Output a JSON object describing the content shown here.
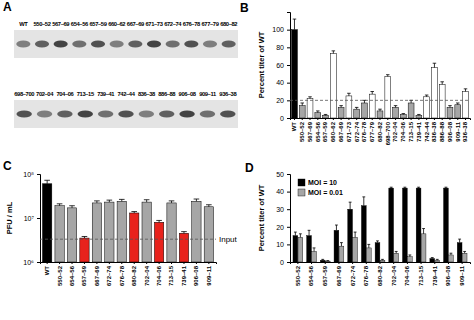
{
  "blot": {
    "label": "A",
    "rows": [
      [
        "WT",
        "550–52",
        "567–69",
        "654–56",
        "657–59",
        "660–62",
        "667–69",
        "671–73",
        "672–74",
        "676–78",
        "677–79",
        "680–82"
      ],
      [
        "698–700",
        "702–04",
        "704–06",
        "713–15",
        "739–41",
        "742–44",
        "836–38",
        "886–88",
        "906–08",
        "909–11",
        "936–38"
      ]
    ]
  },
  "chart_data": [
    {
      "type": "bar",
      "title": "B",
      "y_label": "Percent titer of WT",
      "categories": [
        "WT",
        "550–52",
        "567–69",
        "654–56",
        "657–59",
        "660–62",
        "667–69",
        "671–73",
        "672–74",
        "676–78",
        "677–79",
        "680–82",
        "698–700",
        "702–04",
        "704–06",
        "713–15",
        "739–41",
        "742–44",
        "836–38",
        "886–88",
        "906–08",
        "909–11",
        "936–38"
      ],
      "values": [
        100,
        14,
        22,
        6,
        3,
        73,
        12,
        25,
        10,
        17,
        27,
        8,
        47,
        12,
        4,
        17,
        3,
        24,
        57,
        38,
        12,
        15,
        30
      ],
      "errors": [
        12,
        3,
        2,
        2,
        1,
        3,
        2,
        3,
        2,
        3,
        3,
        2,
        2,
        2,
        1,
        3,
        1,
        2,
        5,
        3,
        2,
        2,
        3
      ],
      "colors": [
        "#000000",
        "#a6a6a6",
        "#ffffff",
        "#a6a6a6",
        "#a6a6a6",
        "#ffffff",
        "#a6a6a6",
        "#ffffff",
        "#a6a6a6",
        "#a6a6a6",
        "#ffffff",
        "#a6a6a6",
        "#ffffff",
        "#a6a6a6",
        "#a6a6a6",
        "#a6a6a6",
        "#a6a6a6",
        "#ffffff",
        "#ffffff",
        "#ffffff",
        "#a6a6a6",
        "#a6a6a6",
        "#ffffff"
      ],
      "ylim": [
        0,
        120
      ],
      "yticks": [
        0,
        20,
        40,
        60,
        80,
        100
      ],
      "threshold": 20
    },
    {
      "type": "bar",
      "title": "C",
      "y_label": "PFU / mL",
      "log": "y",
      "categories": [
        "WT",
        "550–52",
        "654–56",
        "657–59",
        "667–69",
        "672–74",
        "676–78",
        "680–82",
        "702–04",
        "704–06",
        "713–15",
        "739–41",
        "906–08",
        "909–11"
      ],
      "values": [
        60000000,
        19000000,
        17000000,
        3500000,
        22000000,
        23000000,
        24000000,
        13000000,
        23000000,
        8000000,
        22000000,
        4500000,
        24000000,
        18000000
      ],
      "errors": [
        12000000,
        2000000,
        2000000,
        300000,
        2500000,
        2500000,
        2500000,
        1000000,
        3000000,
        800000,
        2500000,
        400000,
        3000000,
        2000000
      ],
      "colors": [
        "#000000",
        "#a6a6a6",
        "#a6a6a6",
        "#e8221c",
        "#a6a6a6",
        "#a6a6a6",
        "#a6a6a6",
        "#e8221c",
        "#a6a6a6",
        "#e8221c",
        "#a6a6a6",
        "#e8221c",
        "#a6a6a6",
        "#a6a6a6"
      ],
      "ylim": [
        1000000,
        100000000
      ],
      "yticks": [
        {
          "value": 1000000,
          "label": "10⁶"
        },
        {
          "value": 10000000,
          "label": "10⁷"
        },
        {
          "value": 100000000,
          "label": "10⁸"
        }
      ],
      "annotations": [
        {
          "text": "Input",
          "value": 3300000
        }
      ]
    },
    {
      "type": "bar",
      "title": "D",
      "y_label": "Percent titer of WT",
      "legend": "top-left",
      "categories": [
        "550–52",
        "654–56",
        "657–59",
        "667–69",
        "672–74",
        "676–78",
        "680–82",
        "702–04",
        "704–06",
        "713–15",
        "739–41",
        "906–08",
        "909–11"
      ],
      "series": [
        {
          "name": "MOI = 10",
          "color": "#000000",
          "values": [
            15,
            15,
            1,
            18,
            30,
            32,
            11,
            42,
            42,
            42,
            2,
            42,
            11
          ],
          "errors": [
            2,
            3,
            0.5,
            3,
            4,
            5,
            1,
            0.5,
            0.5,
            0.5,
            0.5,
            0.5,
            2
          ]
        },
        {
          "name": "MOI = 0.01",
          "color": "#a6a6a6",
          "values": [
            14,
            6,
            0.5,
            9,
            14,
            8,
            1,
            5,
            3,
            16,
            1,
            4,
            5
          ],
          "errors": [
            2,
            2,
            0.3,
            2,
            3,
            2,
            0.5,
            1,
            1,
            3,
            0.5,
            1,
            1
          ]
        }
      ],
      "ylim": [
        0,
        50
      ],
      "yticks": [
        0,
        10,
        20,
        30,
        40,
        50
      ]
    }
  ]
}
